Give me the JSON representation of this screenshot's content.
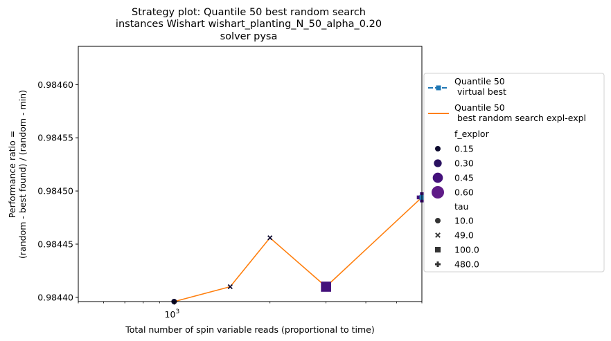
{
  "chart_data": {
    "type": "line",
    "title_lines": [
      "Strategy plot: Quantile 50 best random search",
      "instances Wishart wishart_planting_N_50_alpha_0.20",
      "solver pysa"
    ],
    "xlabel": "Total number of spin variable reads (proportional to time)",
    "ylabel_lines": [
      "Performance ratio =",
      "(random - best found) / (random - min)"
    ],
    "x_scale": "log",
    "xlim": [
      500,
      6000
    ],
    "ylim": [
      0.984396,
      0.984636
    ],
    "x_tick_labels": [
      {
        "value": 1000,
        "base": "10",
        "exp": "3"
      }
    ],
    "y_ticks": [
      0.9844,
      0.98445,
      0.9845,
      0.98455,
      0.9846
    ],
    "y_tick_labels": [
      "0.98440",
      "0.98445",
      "0.98450",
      "0.98455",
      "0.98460"
    ],
    "series": [
      {
        "name": "Quantile 50\n virtual best",
        "color": "#1f77b4",
        "marker": "square",
        "x": [
          6000
        ],
        "y": [
          0.984494
        ]
      },
      {
        "name": "Quantile 50\n best random search expl-expl",
        "color": "#ff7f0e",
        "x": [
          1000,
          1500,
          2000,
          3000,
          6000
        ],
        "y": [
          0.984396,
          0.98441,
          0.984456,
          0.98441,
          0.984494
        ]
      }
    ],
    "points": [
      {
        "x": 1000,
        "y": 0.984396,
        "f_explor": 0.15,
        "tau": 10.0
      },
      {
        "x": 1500,
        "y": 0.98441,
        "f_explor": 0.15,
        "tau": 49.0
      },
      {
        "x": 2000,
        "y": 0.984456,
        "f_explor": 0.15,
        "tau": 49.0
      },
      {
        "x": 3000,
        "y": 0.98441,
        "f_explor": 0.45,
        "tau": 100.0
      },
      {
        "x": 6000,
        "y": 0.984494,
        "f_explor": 0.45,
        "tau": 480.0
      }
    ],
    "legend": {
      "placement": "right outside",
      "lines": [
        {
          "label_lines": [
            "Quantile 50",
            " virtual best"
          ],
          "color": "#1f77b4",
          "marker": "square"
        },
        {
          "label_lines": [
            "Quantile 50",
            " best random search expl-expl"
          ],
          "color": "#ff7f0e",
          "marker": "none"
        }
      ],
      "f_explor_title": "f_explor",
      "f_explor_entries": [
        {
          "label": "0.15",
          "value": 0.15,
          "color": "#0d0a2e"
        },
        {
          "label": "0.30",
          "value": 0.3,
          "color": "#2a1160"
        },
        {
          "label": "0.45",
          "value": 0.45,
          "color": "#44117b"
        },
        {
          "label": "0.60",
          "value": 0.6,
          "color": "#5f1b87"
        }
      ],
      "tau_title": "tau",
      "tau_entries": [
        {
          "label": "10.0",
          "marker": "circle"
        },
        {
          "label": "49.0",
          "marker": "x"
        },
        {
          "label": "100.0",
          "marker": "square"
        },
        {
          "label": "480.0",
          "marker": "plus"
        }
      ]
    }
  }
}
